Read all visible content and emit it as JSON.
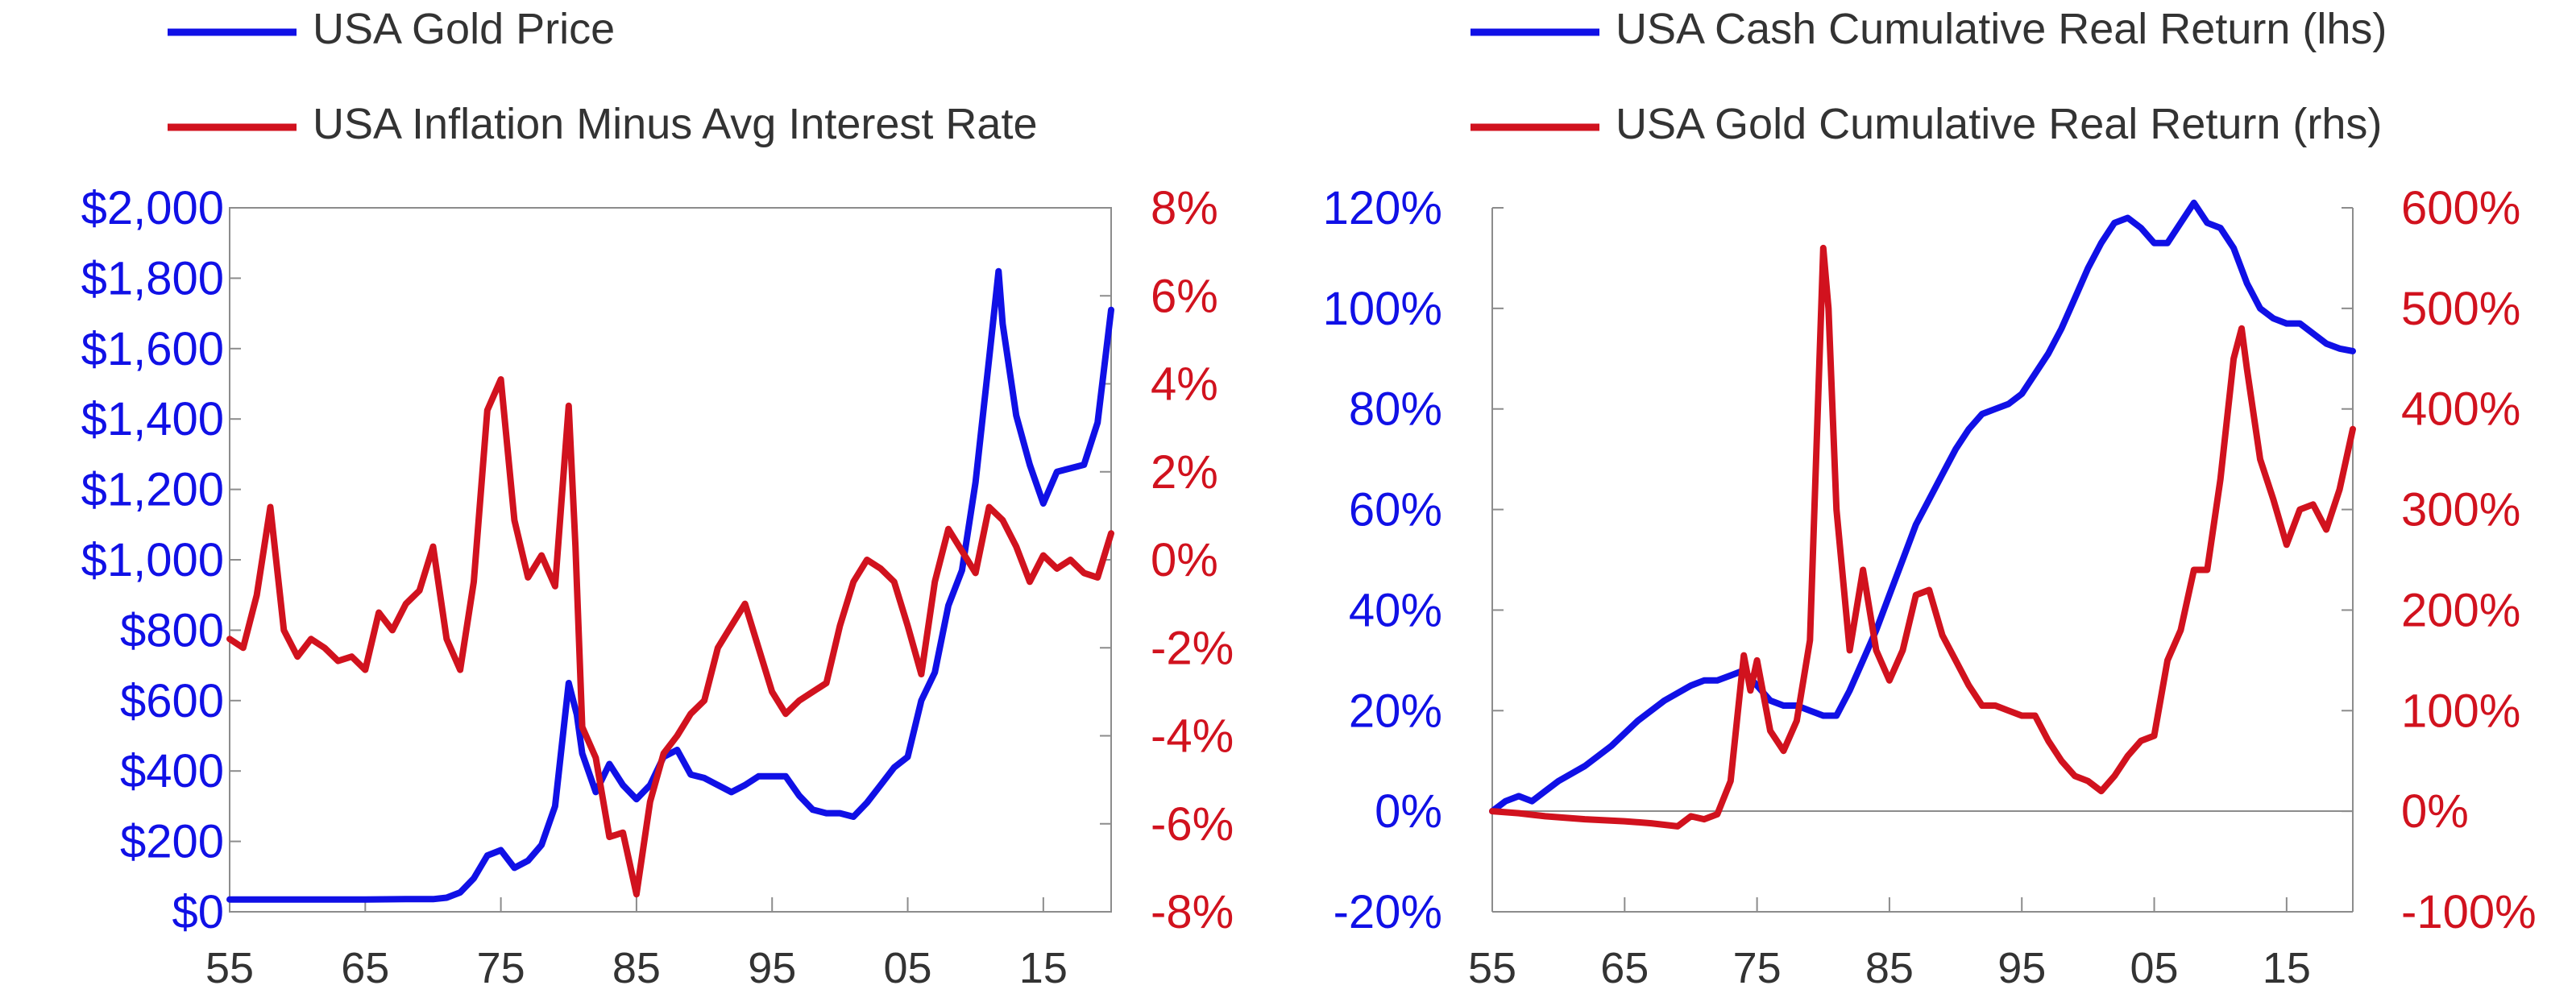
{
  "colors": {
    "blue": "#1010e6",
    "red": "#d1121e",
    "axis": "#8c8c8c",
    "text": "#333333"
  },
  "chart_data": [
    {
      "type": "line",
      "legend_position": "top",
      "grid": false,
      "x_axis": {
        "ticks": [
          "55",
          "65",
          "75",
          "85",
          "95",
          "05",
          "15"
        ],
        "year_range": [
          1955,
          2020
        ]
      },
      "y_left": {
        "ticks": [
          "$0",
          "$200",
          "$400",
          "$600",
          "$800",
          "$1,000",
          "$1,200",
          "$1,400",
          "$1,600",
          "$1,800",
          "$2,000"
        ],
        "range": [
          0,
          2000
        ]
      },
      "y_right": {
        "ticks": [
          "-8%",
          "-6%",
          "-4%",
          "-2%",
          "0%",
          "2%",
          "4%",
          "6%",
          "8%"
        ],
        "range": [
          -8,
          8
        ]
      },
      "series": [
        {
          "name": "USA Gold Price",
          "axis": "left",
          "color": "blue",
          "points": [
            [
              1955,
              35
            ],
            [
              1960,
              35
            ],
            [
              1965,
              35
            ],
            [
              1968,
              36
            ],
            [
              1970,
              36
            ],
            [
              1971,
              40
            ],
            [
              1972,
              55
            ],
            [
              1973,
              95
            ],
            [
              1974,
              160
            ],
            [
              1975,
              175
            ],
            [
              1976,
              125
            ],
            [
              1977,
              145
            ],
            [
              1978,
              190
            ],
            [
              1979,
              300
            ],
            [
              1980,
              650
            ],
            [
              1980.6,
              560
            ],
            [
              1981,
              450
            ],
            [
              1982,
              340
            ],
            [
              1983,
              420
            ],
            [
              1984,
              360
            ],
            [
              1985,
              320
            ],
            [
              1986,
              360
            ],
            [
              1987,
              440
            ],
            [
              1988,
              460
            ],
            [
              1989,
              390
            ],
            [
              1990,
              380
            ],
            [
              1991,
              360
            ],
            [
              1992,
              340
            ],
            [
              1993,
              360
            ],
            [
              1994,
              385
            ],
            [
              1995,
              385
            ],
            [
              1996,
              385
            ],
            [
              1997,
              330
            ],
            [
              1998,
              290
            ],
            [
              1999,
              280
            ],
            [
              2000,
              280
            ],
            [
              2001,
              270
            ],
            [
              2002,
              310
            ],
            [
              2003,
              360
            ],
            [
              2004,
              410
            ],
            [
              2005,
              440
            ],
            [
              2006,
              600
            ],
            [
              2007,
              680
            ],
            [
              2008,
              870
            ],
            [
              2009,
              970
            ],
            [
              2010,
              1220
            ],
            [
              2011,
              1570
            ],
            [
              2011.7,
              1820
            ],
            [
              2012,
              1670
            ],
            [
              2013,
              1410
            ],
            [
              2014,
              1270
            ],
            [
              2015,
              1160
            ],
            [
              2016,
              1250
            ],
            [
              2017,
              1260
            ],
            [
              2018,
              1270
            ],
            [
              2019,
              1390
            ],
            [
              2020,
              1710
            ]
          ]
        },
        {
          "name": "USA Inflation Minus Avg Interest Rate",
          "axis": "right",
          "color": "red",
          "points": [
            [
              1955,
              -1.8
            ],
            [
              1956,
              -2.0
            ],
            [
              1957,
              -0.8
            ],
            [
              1958,
              1.2
            ],
            [
              1959,
              -1.6
            ],
            [
              1960,
              -2.2
            ],
            [
              1961,
              -1.8
            ],
            [
              1962,
              -2.0
            ],
            [
              1963,
              -2.3
            ],
            [
              1964,
              -2.2
            ],
            [
              1965,
              -2.5
            ],
            [
              1966,
              -1.2
            ],
            [
              1967,
              -1.6
            ],
            [
              1968,
              -1.0
            ],
            [
              1969,
              -0.7
            ],
            [
              1970,
              0.3
            ],
            [
              1971,
              -1.8
            ],
            [
              1972,
              -2.5
            ],
            [
              1973,
              -0.5
            ],
            [
              1974,
              3.4
            ],
            [
              1975,
              4.1
            ],
            [
              1976,
              0.9
            ],
            [
              1977,
              -0.4
            ],
            [
              1978,
              0.1
            ],
            [
              1979,
              -0.6
            ],
            [
              1980,
              3.5
            ],
            [
              1980.5,
              0.3
            ],
            [
              1981,
              -3.8
            ],
            [
              1982,
              -4.5
            ],
            [
              1983,
              -6.3
            ],
            [
              1984,
              -6.2
            ],
            [
              1985,
              -7.6
            ],
            [
              1986,
              -5.5
            ],
            [
              1987,
              -4.4
            ],
            [
              1988,
              -4.0
            ],
            [
              1989,
              -3.5
            ],
            [
              1990,
              -3.2
            ],
            [
              1991,
              -2.0
            ],
            [
              1992,
              -1.5
            ],
            [
              1993,
              -1.0
            ],
            [
              1994,
              -2.0
            ],
            [
              1995,
              -3.0
            ],
            [
              1996,
              -3.5
            ],
            [
              1997,
              -3.2
            ],
            [
              1998,
              -3.0
            ],
            [
              1999,
              -2.8
            ],
            [
              2000,
              -1.5
            ],
            [
              2001,
              -0.5
            ],
            [
              2002,
              0.0
            ],
            [
              2003,
              -0.2
            ],
            [
              2004,
              -0.5
            ],
            [
              2005,
              -1.5
            ],
            [
              2006,
              -2.6
            ],
            [
              2007,
              -0.5
            ],
            [
              2008,
              0.7
            ],
            [
              2009,
              0.2
            ],
            [
              2010,
              -0.3
            ],
            [
              2011,
              1.2
            ],
            [
              2012,
              0.9
            ],
            [
              2013,
              0.3
            ],
            [
              2014,
              -0.5
            ],
            [
              2015,
              0.1
            ],
            [
              2016,
              -0.2
            ],
            [
              2017,
              0.0
            ],
            [
              2018,
              -0.3
            ],
            [
              2019,
              -0.4
            ],
            [
              2020,
              0.6
            ]
          ]
        }
      ]
    },
    {
      "type": "line",
      "legend_position": "top",
      "grid": false,
      "x_axis": {
        "ticks": [
          "55",
          "65",
          "75",
          "85",
          "95",
          "05",
          "15"
        ],
        "year_range": [
          1955,
          2020
        ]
      },
      "y_left": {
        "ticks": [
          "-20%",
          "0%",
          "20%",
          "40%",
          "60%",
          "80%",
          "100%",
          "120%"
        ],
        "range": [
          -20,
          120
        ]
      },
      "y_right": {
        "ticks": [
          "-100%",
          "0%",
          "100%",
          "200%",
          "300%",
          "400%",
          "500%",
          "600%"
        ],
        "range": [
          -100,
          600
        ]
      },
      "series": [
        {
          "name": "USA Cash Cumulative Real Return (lhs)",
          "axis": "left",
          "color": "blue",
          "points": [
            [
              1955,
              0
            ],
            [
              1956,
              2
            ],
            [
              1957,
              3
            ],
            [
              1958,
              2
            ],
            [
              1959,
              4
            ],
            [
              1960,
              6
            ],
            [
              1962,
              9
            ],
            [
              1964,
              13
            ],
            [
              1966,
              18
            ],
            [
              1968,
              22
            ],
            [
              1970,
              25
            ],
            [
              1971,
              26
            ],
            [
              1972,
              26
            ],
            [
              1973,
              27
            ],
            [
              1974,
              28
            ],
            [
              1975,
              25
            ],
            [
              1976,
              22
            ],
            [
              1977,
              21
            ],
            [
              1978,
              21
            ],
            [
              1979,
              20
            ],
            [
              1980,
              19
            ],
            [
              1981,
              19
            ],
            [
              1982,
              24
            ],
            [
              1983,
              30
            ],
            [
              1984,
              36
            ],
            [
              1985,
              43
            ],
            [
              1986,
              50
            ],
            [
              1987,
              57
            ],
            [
              1988,
              62
            ],
            [
              1989,
              67
            ],
            [
              1990,
              72
            ],
            [
              1991,
              76
            ],
            [
              1992,
              79
            ],
            [
              1993,
              80
            ],
            [
              1994,
              81
            ],
            [
              1995,
              83
            ],
            [
              1996,
              87
            ],
            [
              1997,
              91
            ],
            [
              1998,
              96
            ],
            [
              1999,
              102
            ],
            [
              2000,
              108
            ],
            [
              2001,
              113
            ],
            [
              2002,
              117
            ],
            [
              2003,
              118
            ],
            [
              2004,
              116
            ],
            [
              2005,
              113
            ],
            [
              2006,
              113
            ],
            [
              2007,
              117
            ],
            [
              2008,
              121
            ],
            [
              2009,
              117
            ],
            [
              2010,
              116
            ],
            [
              2011,
              112
            ],
            [
              2012,
              105
            ],
            [
              2013,
              100
            ],
            [
              2014,
              98
            ],
            [
              2015,
              97
            ],
            [
              2016,
              97
            ],
            [
              2017,
              95
            ],
            [
              2018,
              93
            ],
            [
              2019,
              92
            ],
            [
              2020,
              91.5
            ]
          ]
        },
        {
          "name": "USA Gold Cumulative Real Return (rhs)",
          "axis": "right",
          "color": "red",
          "points": [
            [
              1955,
              0
            ],
            [
              1957,
              -2
            ],
            [
              1959,
              -5
            ],
            [
              1962,
              -8
            ],
            [
              1965,
              -10
            ],
            [
              1967,
              -12
            ],
            [
              1969,
              -15
            ],
            [
              1970,
              -5
            ],
            [
              1971,
              -8
            ],
            [
              1972,
              -3
            ],
            [
              1973,
              30
            ],
            [
              1974,
              155
            ],
            [
              1974.5,
              120
            ],
            [
              1975,
              150
            ],
            [
              1976,
              80
            ],
            [
              1977,
              60
            ],
            [
              1978,
              90
            ],
            [
              1979,
              170
            ],
            [
              1980,
              560
            ],
            [
              1980.4,
              500
            ],
            [
              1981,
              300
            ],
            [
              1982,
              160
            ],
            [
              1983,
              240
            ],
            [
              1984,
              160
            ],
            [
              1985,
              130
            ],
            [
              1986,
              160
            ],
            [
              1987,
              215
            ],
            [
              1988,
              220
            ],
            [
              1989,
              175
            ],
            [
              1990,
              150
            ],
            [
              1991,
              125
            ],
            [
              1992,
              105
            ],
            [
              1993,
              105
            ],
            [
              1994,
              100
            ],
            [
              1995,
              95
            ],
            [
              1996,
              95
            ],
            [
              1997,
              70
            ],
            [
              1998,
              50
            ],
            [
              1999,
              35
            ],
            [
              2000,
              30
            ],
            [
              2001,
              20
            ],
            [
              2002,
              35
            ],
            [
              2003,
              55
            ],
            [
              2004,
              70
            ],
            [
              2005,
              75
            ],
            [
              2006,
              150
            ],
            [
              2007,
              180
            ],
            [
              2008,
              240
            ],
            [
              2009,
              240
            ],
            [
              2010,
              330
            ],
            [
              2011,
              450
            ],
            [
              2011.6,
              480
            ],
            [
              2012,
              440
            ],
            [
              2013,
              350
            ],
            [
              2014,
              310
            ],
            [
              2015,
              265
            ],
            [
              2016,
              300
            ],
            [
              2017,
              305
            ],
            [
              2018,
              280
            ],
            [
              2019,
              320
            ],
            [
              2020,
              380
            ]
          ]
        }
      ]
    }
  ]
}
